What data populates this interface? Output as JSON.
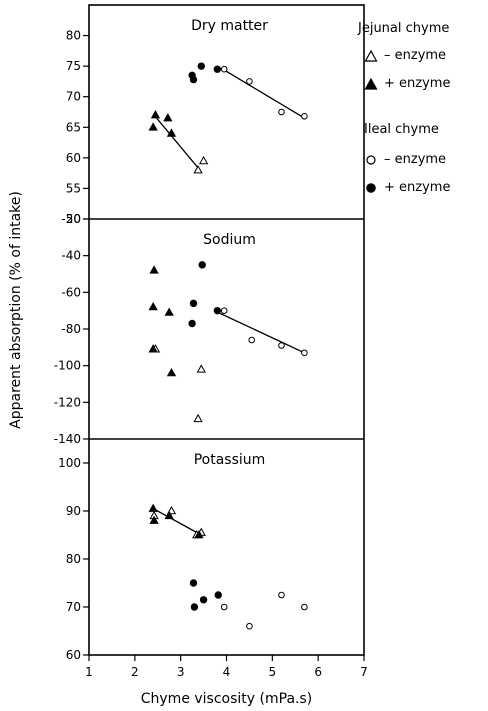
{
  "chart_data": {
    "type": "scatter",
    "xlabel": "Chyme viscosity (mPa.s)",
    "ylabel": "Apparent absorption (% of intake)",
    "xlim": [
      1,
      7
    ],
    "xticks": [
      "1",
      "2",
      "3",
      "4",
      "5",
      "6",
      "7"
    ],
    "legend": {
      "groups": [
        {
          "title": "Jejunal chyme",
          "entries": [
            {
              "symbol": "open-triangle",
              "label": "– enzyme"
            },
            {
              "symbol": "filled-triangle",
              "label": "+ enzyme"
            }
          ]
        },
        {
          "title": "Ileal chyme",
          "entries": [
            {
              "symbol": "open-circle",
              "label": "– enzyme"
            },
            {
              "symbol": "filled-circle",
              "label": "+ enzyme"
            }
          ]
        }
      ],
      "placement": "right"
    },
    "panels": [
      {
        "title": "Dry matter",
        "ylim": [
          50,
          85
        ],
        "yticks": [
          "50",
          "55",
          "60",
          "65",
          "70",
          "75",
          "80"
        ],
        "series": [
          {
            "symbol": "open-triangle",
            "points": [
              [
                3.38,
                58
              ],
              [
                3.5,
                59.5
              ]
            ]
          },
          {
            "symbol": "filled-triangle",
            "points": [
              [
                2.4,
                65
              ],
              [
                2.45,
                67
              ],
              [
                2.72,
                66.5
              ],
              [
                2.8,
                64
              ]
            ]
          },
          {
            "symbol": "open-circle",
            "points": [
              [
                3.95,
                74.5
              ],
              [
                4.5,
                72.5
              ],
              [
                5.2,
                67.5
              ],
              [
                5.7,
                66.8
              ]
            ]
          },
          {
            "symbol": "filled-circle",
            "points": [
              [
                3.25,
                73.5
              ],
              [
                3.28,
                72.8
              ],
              [
                3.45,
                75
              ],
              [
                3.8,
                74.5
              ]
            ]
          }
        ],
        "fit_lines": [
          {
            "x": [
              2.42,
              3.42
            ],
            "y": [
              67,
              58
            ]
          },
          {
            "x": [
              3.92,
              5.7
            ],
            "y": [
              74.5,
              66.5
            ]
          }
        ]
      },
      {
        "title": "Sodium",
        "ylim": [
          -140,
          -20
        ],
        "yticks": [
          "-140",
          "-120",
          "-100",
          "-80",
          "-60",
          "-40",
          "-20"
        ],
        "series": [
          {
            "symbol": "open-triangle",
            "points": [
              [
                2.45,
                -91
              ],
              [
                3.45,
                -102
              ],
              [
                3.38,
                -129
              ]
            ]
          },
          {
            "symbol": "filled-triangle",
            "points": [
              [
                2.42,
                -48
              ],
              [
                2.4,
                -68
              ],
              [
                2.75,
                -71
              ],
              [
                2.4,
                -91
              ],
              [
                2.8,
                -104
              ]
            ]
          },
          {
            "symbol": "open-circle",
            "points": [
              [
                3.95,
                -70
              ],
              [
                4.55,
                -86
              ],
              [
                5.2,
                -89
              ],
              [
                5.7,
                -93
              ]
            ]
          },
          {
            "symbol": "filled-circle",
            "points": [
              [
                3.47,
                -45
              ],
              [
                3.28,
                -66
              ],
              [
                3.25,
                -77
              ],
              [
                3.8,
                -70
              ]
            ]
          }
        ],
        "fit_lines": [
          {
            "x": [
              3.82,
              5.7
            ],
            "y": [
              -71,
              -93
            ]
          }
        ]
      },
      {
        "title": "Potassium",
        "ylim": [
          60,
          105
        ],
        "yticks": [
          "60",
          "70",
          "80",
          "90",
          "100"
        ],
        "series": [
          {
            "symbol": "open-triangle",
            "points": [
              [
                2.42,
                89
              ],
              [
                2.8,
                90
              ],
              [
                3.35,
                85
              ],
              [
                3.45,
                85.5
              ]
            ]
          },
          {
            "symbol": "filled-triangle",
            "points": [
              [
                2.4,
                90.5
              ],
              [
                2.42,
                88
              ],
              [
                2.75,
                89
              ],
              [
                3.4,
                85
              ]
            ]
          },
          {
            "symbol": "open-circle",
            "points": [
              [
                3.95,
                70
              ],
              [
                4.5,
                66
              ],
              [
                5.2,
                72.5
              ],
              [
                5.7,
                70
              ]
            ]
          },
          {
            "symbol": "filled-circle",
            "points": [
              [
                3.28,
                75
              ],
              [
                3.3,
                70
              ],
              [
                3.5,
                71.5
              ],
              [
                3.82,
                72.5
              ]
            ]
          }
        ],
        "fit_lines": [
          {
            "x": [
              2.4,
              3.45
            ],
            "y": [
              90.5,
              85
            ]
          }
        ]
      }
    ]
  }
}
